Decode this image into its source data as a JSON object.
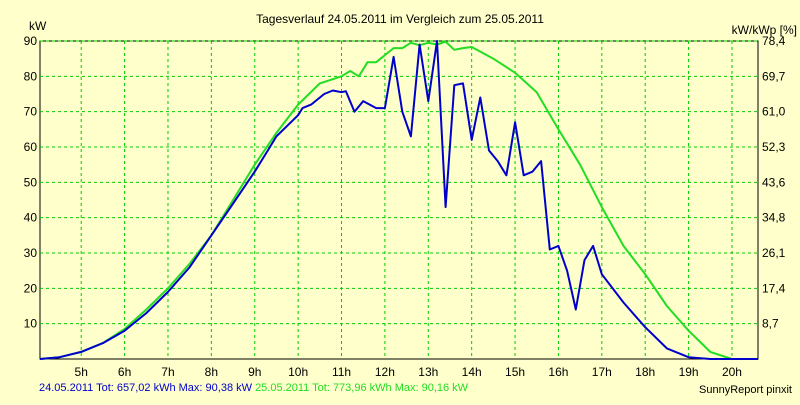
{
  "chart_data": {
    "type": "line",
    "title": "Tagesverlauf 24.05.2011 im Vergleich zum 25.05.2011",
    "ylabel_left": "kW",
    "ylabel_right": "kW/kWp [%]",
    "x_ticks": [
      5,
      6,
      7,
      8,
      9,
      10,
      11,
      12,
      13,
      14,
      15,
      16,
      17,
      18,
      19,
      20
    ],
    "x_tick_labels": [
      "5h",
      "6h",
      "7h",
      "8h",
      "9h",
      "10h",
      "11h",
      "12h",
      "13h",
      "14h",
      "15h",
      "16h",
      "17h",
      "18h",
      "19h",
      "20h"
    ],
    "xlim": [
      4.05,
      20.6
    ],
    "y_ticks": [
      10,
      20,
      30,
      40,
      50,
      60,
      70,
      80,
      90
    ],
    "y_tick_labels": [
      "10",
      "20",
      "30",
      "40",
      "50",
      "60",
      "70",
      "80",
      "90"
    ],
    "ylim": [
      0,
      90
    ],
    "y2_tick_labels": [
      "8,7",
      "17,4",
      "26,1",
      "34,8",
      "43,6",
      "52,3",
      "61,0",
      "69,7",
      "78,4"
    ],
    "grid": true,
    "colors": {
      "background": "#ffffcc",
      "grid": "#00cc00",
      "series1": "#0000cc",
      "series2": "#22dd22"
    },
    "series": [
      {
        "name": "24.05.2011",
        "points": [
          [
            4.05,
            0
          ],
          [
            4.5,
            0.5
          ],
          [
            5.0,
            2
          ],
          [
            5.5,
            4.5
          ],
          [
            6.0,
            8
          ],
          [
            6.5,
            13
          ],
          [
            7.0,
            19
          ],
          [
            7.5,
            26
          ],
          [
            8.0,
            35
          ],
          [
            8.5,
            44
          ],
          [
            9.0,
            53
          ],
          [
            9.3,
            59
          ],
          [
            9.5,
            63
          ],
          [
            10.0,
            69
          ],
          [
            10.1,
            71
          ],
          [
            10.3,
            72
          ],
          [
            10.6,
            75
          ],
          [
            10.8,
            76
          ],
          [
            11.0,
            75.5
          ],
          [
            11.1,
            75.8
          ],
          [
            11.3,
            70
          ],
          [
            11.5,
            73
          ],
          [
            11.8,
            71
          ],
          [
            12.0,
            71
          ],
          [
            12.2,
            85.5
          ],
          [
            12.4,
            70
          ],
          [
            12.6,
            63
          ],
          [
            12.8,
            89
          ],
          [
            13.0,
            73
          ],
          [
            13.2,
            90
          ],
          [
            13.4,
            43
          ],
          [
            13.6,
            77.5
          ],
          [
            13.8,
            78
          ],
          [
            14.0,
            62
          ],
          [
            14.2,
            74
          ],
          [
            14.4,
            59
          ],
          [
            14.6,
            56
          ],
          [
            14.8,
            52
          ],
          [
            15.0,
            67
          ],
          [
            15.2,
            52
          ],
          [
            15.4,
            53
          ],
          [
            15.6,
            56
          ],
          [
            15.8,
            31
          ],
          [
            16.0,
            32
          ],
          [
            16.2,
            25
          ],
          [
            16.4,
            14
          ],
          [
            16.6,
            28
          ],
          [
            16.8,
            32
          ],
          [
            17.0,
            24
          ],
          [
            17.5,
            16
          ],
          [
            18.0,
            9
          ],
          [
            18.5,
            3
          ],
          [
            19.0,
            0.5
          ],
          [
            19.5,
            0
          ],
          [
            20.6,
            0
          ]
        ]
      },
      {
        "name": "25.05.2011",
        "points": [
          [
            4.05,
            0
          ],
          [
            4.5,
            0.5
          ],
          [
            5.0,
            2
          ],
          [
            5.5,
            4.5
          ],
          [
            6.0,
            8.5
          ],
          [
            6.5,
            14
          ],
          [
            7.0,
            20
          ],
          [
            7.5,
            27
          ],
          [
            8.0,
            35
          ],
          [
            8.5,
            45
          ],
          [
            9.0,
            55
          ],
          [
            9.5,
            64
          ],
          [
            10.0,
            72
          ],
          [
            10.5,
            78
          ],
          [
            11.0,
            80
          ],
          [
            11.2,
            81.5
          ],
          [
            11.4,
            80
          ],
          [
            11.6,
            84
          ],
          [
            11.8,
            84
          ],
          [
            12.0,
            86
          ],
          [
            12.2,
            88
          ],
          [
            12.4,
            88
          ],
          [
            12.6,
            89.5
          ],
          [
            12.8,
            88.8
          ],
          [
            13.0,
            89.5
          ],
          [
            13.2,
            89
          ],
          [
            13.4,
            89.8
          ],
          [
            13.6,
            87.5
          ],
          [
            13.8,
            88
          ],
          [
            14.0,
            88.3
          ],
          [
            14.2,
            87
          ],
          [
            14.5,
            85
          ],
          [
            15.0,
            81
          ],
          [
            15.5,
            75.5
          ],
          [
            16.0,
            65
          ],
          [
            16.5,
            55
          ],
          [
            17.0,
            43
          ],
          [
            17.5,
            32
          ],
          [
            18.0,
            24
          ],
          [
            18.5,
            15
          ],
          [
            19.0,
            8
          ],
          [
            19.5,
            2
          ],
          [
            20.0,
            0
          ],
          [
            20.6,
            0
          ]
        ]
      }
    ]
  },
  "footer": {
    "series1_summary": "24.05.2011 Tot: 657,02 kWh Max: 90,38 kW",
    "series2_summary": "25.05.2011 Tot: 773,96 kWh Max: 90,16 kW",
    "credit": "SunnyReport pinxit"
  }
}
